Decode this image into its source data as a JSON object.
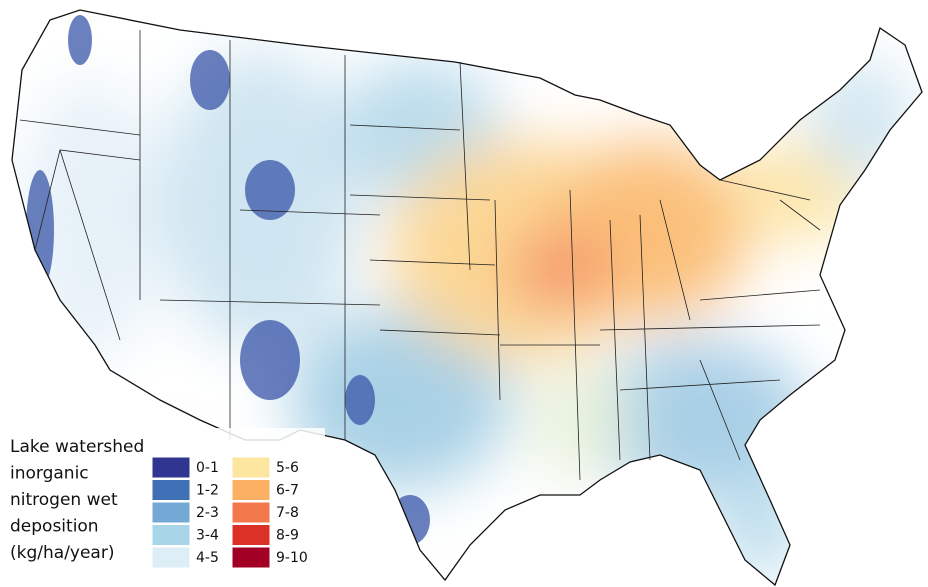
{
  "legend": {
    "title_lines": [
      "Lake watershed",
      "inorganic",
      "nitrogen wet",
      "deposition",
      "(kg/ha/year)"
    ],
    "classes": [
      {
        "label": "0-1",
        "color": "#2f3590"
      },
      {
        "label": "1-2",
        "color": "#3f70b6"
      },
      {
        "label": "2-3",
        "color": "#74a9d6"
      },
      {
        "label": "3-4",
        "color": "#a9d5e8"
      },
      {
        "label": "4-5",
        "color": "#ddeef6"
      },
      {
        "label": "5-6",
        "color": "#fde6a0"
      },
      {
        "label": "6-7",
        "color": "#fbb063"
      },
      {
        "label": "7-8",
        "color": "#f3784b"
      },
      {
        "label": "8-9",
        "color": "#dc3127"
      },
      {
        "label": "9-10",
        "color": "#a20025"
      }
    ]
  }
}
